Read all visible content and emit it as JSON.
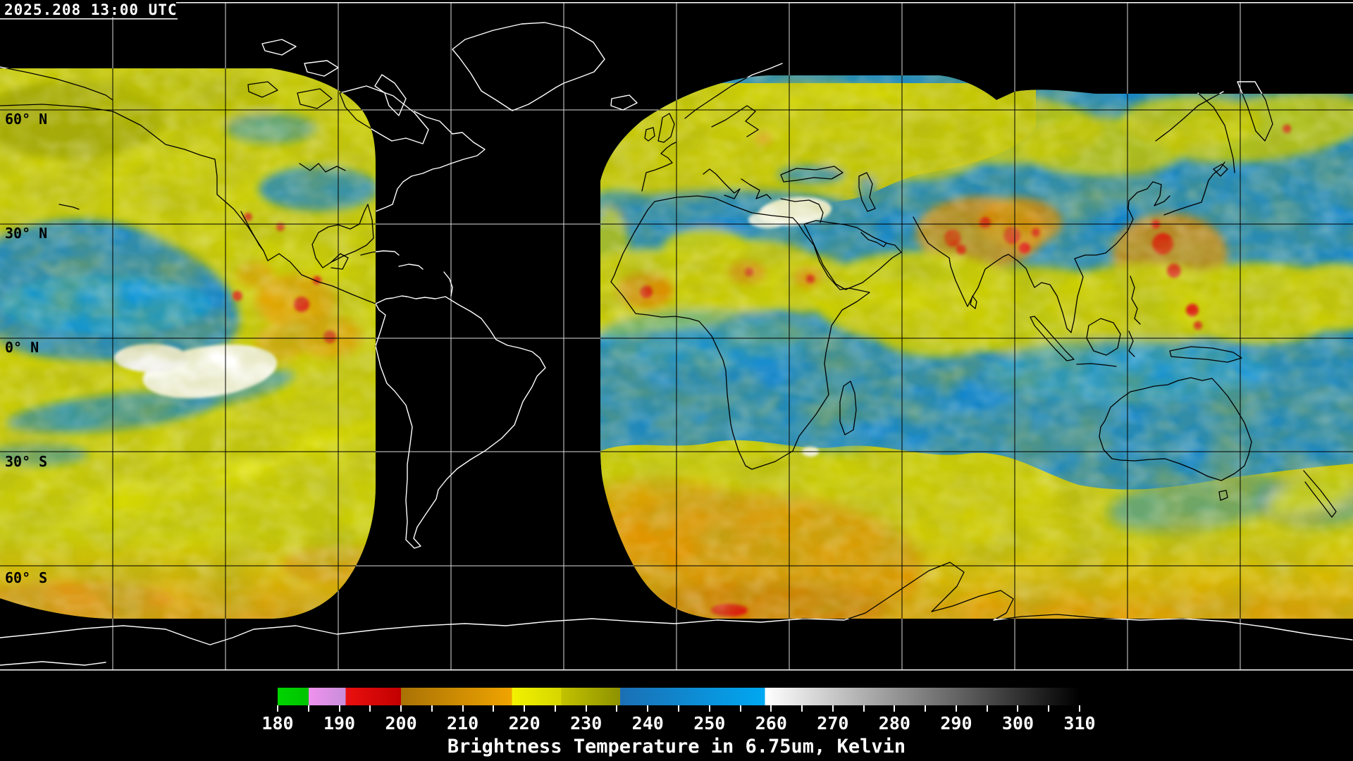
{
  "header": {
    "timestamp": "2025.208 13:00 UTC"
  },
  "map": {
    "latitude_labels": [
      {
        "text": "60° N"
      },
      {
        "text": "30° N"
      },
      {
        "text": "0° N"
      },
      {
        "text": "30° S"
      },
      {
        "text": "60° S"
      }
    ],
    "grid_interval_degrees": 30
  },
  "colorbar": {
    "title": "Brightness Temperature in 6.75um, Kelvin",
    "unit": "Kelvin",
    "min": 180,
    "max": 310,
    "minor_tick_step": 5,
    "major_tick_step": 10,
    "tick_labels": [
      "180",
      "190",
      "200",
      "210",
      "220",
      "230",
      "240",
      "250",
      "260",
      "270",
      "280",
      "290",
      "300",
      "310"
    ],
    "segments": [
      {
        "from": 180,
        "to": 185,
        "start": "#00d400",
        "end": "#00c400"
      },
      {
        "from": 185,
        "to": 191,
        "start": "#f091ee",
        "end": "#c88edb"
      },
      {
        "from": 191,
        "to": 200,
        "start": "#ea100f",
        "end": "#c20000"
      },
      {
        "from": 200,
        "to": 218,
        "start": "#a87205",
        "end": "#f0a400"
      },
      {
        "from": 218,
        "to": 226,
        "start": "#f2f200",
        "end": "#d6d600"
      },
      {
        "from": 226,
        "to": 235.5,
        "start": "#c2c200",
        "end": "#8e9200"
      },
      {
        "from": 235.5,
        "to": 259,
        "start": "#1b6fb4",
        "end": "#00a8f2"
      },
      {
        "from": 259,
        "to": 310,
        "start": "#ffffff",
        "end": "#000000"
      }
    ]
  },
  "palette": {
    "background": "#000000",
    "data_yellow": "#cfd104",
    "data_blue": "#1486ca",
    "data_orange": "#e89c00",
    "data_red": "#dc1f10",
    "cloud_white": "#ffffff",
    "grid_on_void": "#dcdcdc",
    "grid_on_data": "#000000",
    "coast_on_void": "#ffffff",
    "coast_on_data": "#000000"
  }
}
